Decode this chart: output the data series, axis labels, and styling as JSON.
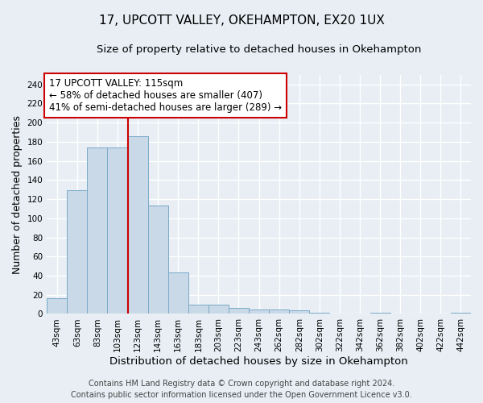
{
  "title_line1": "17, UPCOTT VALLEY, OKEHAMPTON, EX20 1UX",
  "title_line2": "Size of property relative to detached houses in Okehampton",
  "xlabel": "Distribution of detached houses by size in Okehampton",
  "ylabel": "Number of detached properties",
  "bar_labels": [
    "43sqm",
    "63sqm",
    "83sqm",
    "103sqm",
    "123sqm",
    "143sqm",
    "163sqm",
    "183sqm",
    "203sqm",
    "223sqm",
    "243sqm",
    "262sqm",
    "282sqm",
    "302sqm",
    "322sqm",
    "342sqm",
    "362sqm",
    "382sqm",
    "402sqm",
    "422sqm",
    "442sqm"
  ],
  "bar_values": [
    16,
    129,
    174,
    174,
    186,
    113,
    43,
    10,
    10,
    6,
    5,
    5,
    4,
    1,
    0,
    0,
    1,
    0,
    0,
    0,
    1
  ],
  "bar_color": "#c9d9e8",
  "bar_edge_color": "#7aaac8",
  "background_color": "#e8eef4",
  "grid_color": "#ffffff",
  "ylim": [
    0,
    250
  ],
  "yticks": [
    0,
    20,
    40,
    60,
    80,
    100,
    120,
    140,
    160,
    180,
    200,
    220,
    240
  ],
  "red_line_color": "#cc0000",
  "red_line_x": 3.5,
  "annotation_title": "17 UPCOTT VALLEY: 115sqm",
  "annotation_line1": "← 58% of detached houses are smaller (407)",
  "annotation_line2": "41% of semi-detached houses are larger (289) →",
  "annotation_box_color": "#ffffff",
  "annotation_box_edge_color": "#cc0000",
  "footer_line1": "Contains HM Land Registry data © Crown copyright and database right 2024.",
  "footer_line2": "Contains public sector information licensed under the Open Government Licence v3.0.",
  "title_fontsize": 11,
  "subtitle_fontsize": 9.5,
  "ylabel_fontsize": 9,
  "xlabel_fontsize": 9.5,
  "tick_fontsize": 7.5,
  "annotation_fontsize": 8.5,
  "footer_fontsize": 7
}
